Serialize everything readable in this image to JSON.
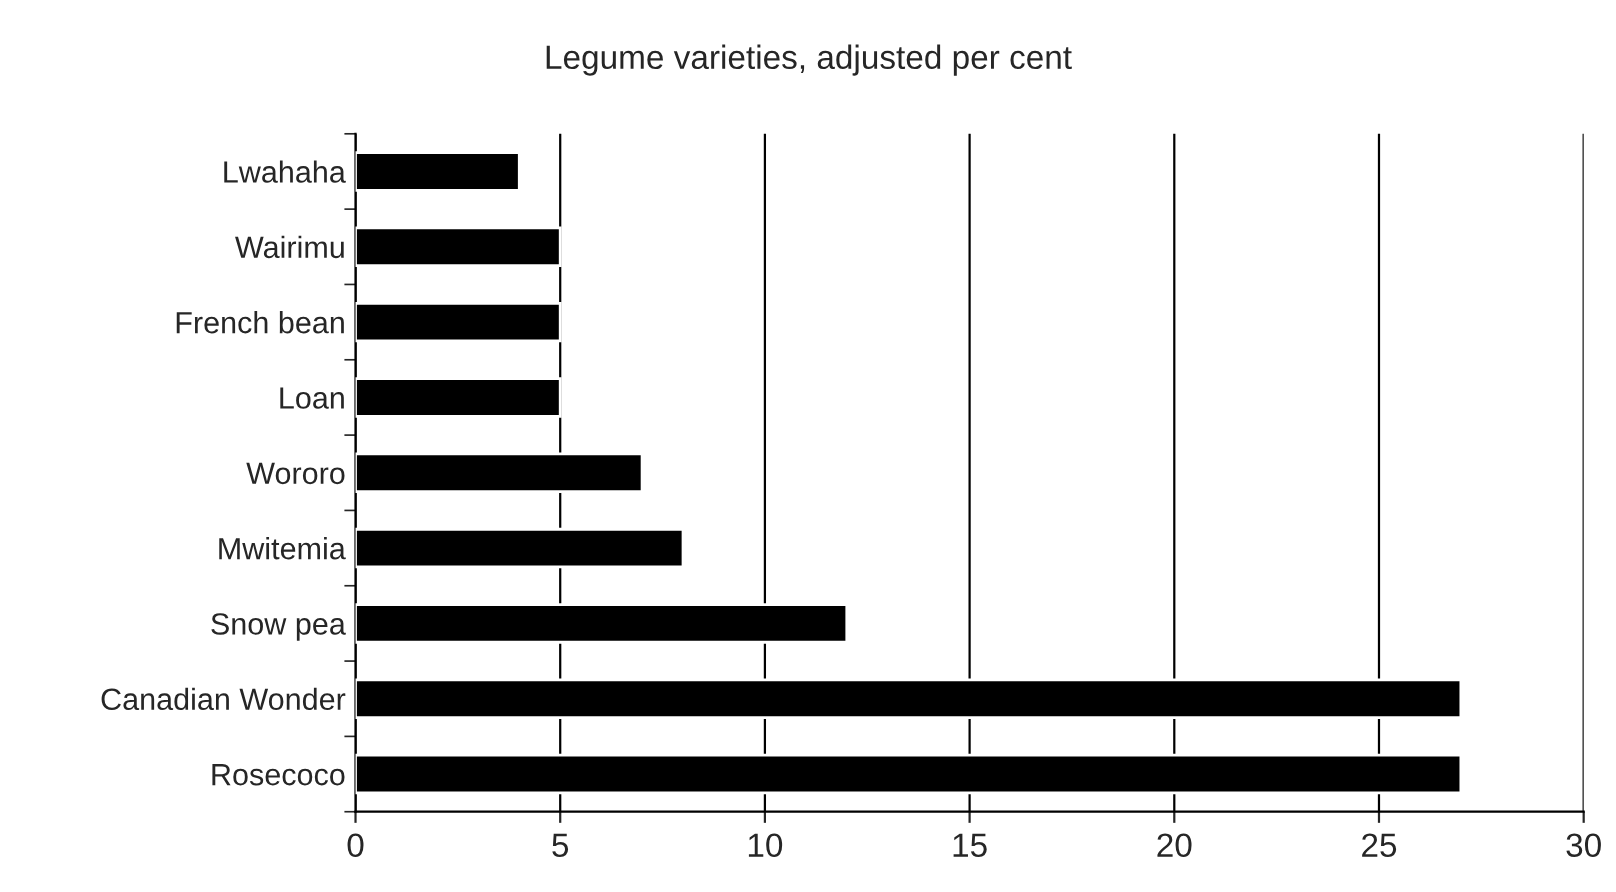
{
  "chart_data": {
    "type": "bar",
    "orientation": "horizontal",
    "title": "Legume varieties, adjusted per cent",
    "categories": [
      "Lwahaha",
      "Wairimu",
      "French bean",
      "Loan",
      "Wororo",
      "Mwitemia",
      "Snow pea",
      "Canadian Wonder",
      "Rosecoco"
    ],
    "values": [
      4,
      5,
      5,
      5,
      7,
      8,
      12,
      27,
      27
    ],
    "color": "#000000",
    "xlim": [
      0,
      30
    ],
    "xticks": [
      0,
      5,
      10,
      15,
      20,
      25,
      30
    ],
    "grid": "x",
    "legend": false
  }
}
